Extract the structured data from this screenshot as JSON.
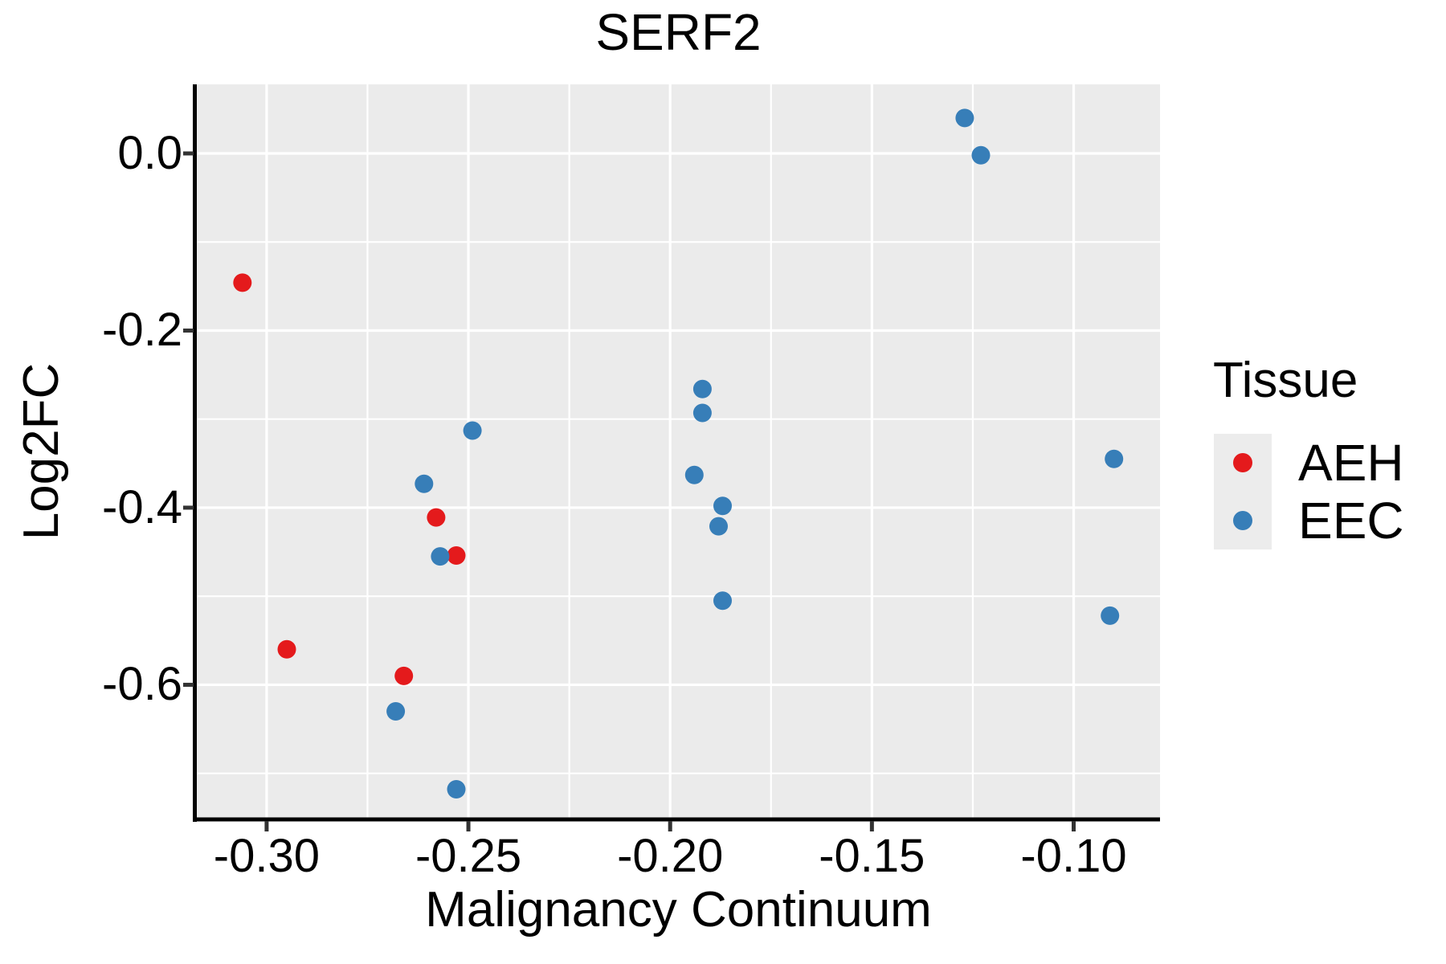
{
  "title": "SERF2",
  "chart_data": {
    "type": "scatter",
    "title": "SERF2",
    "xlabel": "Malignancy Continuum",
    "ylabel": "Log2FC",
    "xlim": [
      -0.3173,
      -0.0786
    ],
    "ylim": [
      -0.752,
      0.078
    ],
    "x_ticks": {
      "values": [
        -0.3,
        -0.25,
        -0.2,
        -0.15,
        -0.1
      ],
      "labels": [
        "-0.30",
        "-0.25",
        "-0.20",
        "-0.15",
        "-0.10"
      ]
    },
    "y_ticks": {
      "values": [
        0.0,
        -0.2,
        -0.4,
        -0.6
      ],
      "labels": [
        "0.0",
        "-0.2",
        "-0.4",
        "-0.6"
      ]
    },
    "x_minor_gridlines": [
      -0.275,
      -0.225,
      -0.175,
      -0.125
    ],
    "y_minor_gridlines": [
      -0.1,
      -0.3,
      -0.5,
      -0.7
    ],
    "grid": "white major and minor gridlines on gray panel",
    "legend_position": "right-center",
    "series": [
      {
        "name": "AEH",
        "color": "#e41a1c",
        "points": [
          [
            -0.306,
            -0.146
          ],
          [
            -0.295,
            -0.56
          ],
          [
            -0.266,
            -0.59
          ],
          [
            -0.258,
            -0.411
          ],
          [
            -0.253,
            -0.454
          ]
        ]
      },
      {
        "name": "EEC",
        "color": "#377eb8",
        "points": [
          [
            -0.268,
            -0.63
          ],
          [
            -0.261,
            -0.373
          ],
          [
            -0.257,
            -0.455
          ],
          [
            -0.253,
            -0.718
          ],
          [
            -0.249,
            -0.313
          ],
          [
            -0.194,
            -0.363
          ],
          [
            -0.192,
            -0.266
          ],
          [
            -0.192,
            -0.293
          ],
          [
            -0.188,
            -0.421
          ],
          [
            -0.187,
            -0.398
          ],
          [
            -0.187,
            -0.505
          ],
          [
            -0.127,
            0.04
          ],
          [
            -0.123,
            -0.002
          ],
          [
            -0.091,
            -0.522
          ],
          [
            -0.09,
            -0.345
          ]
        ]
      }
    ]
  },
  "legend": {
    "title": "Tissue",
    "entries": [
      {
        "label": "AEH",
        "color": "#e41a1c"
      },
      {
        "label": "EEC",
        "color": "#377eb8"
      }
    ]
  },
  "style": {
    "panel_bg": "#ebebeb",
    "grid_color": "#ffffff",
    "legend_key_bg": "#ececec",
    "axis_line_color": "#000000",
    "tick_mark_color": "#333333",
    "text_color": "#000000"
  }
}
